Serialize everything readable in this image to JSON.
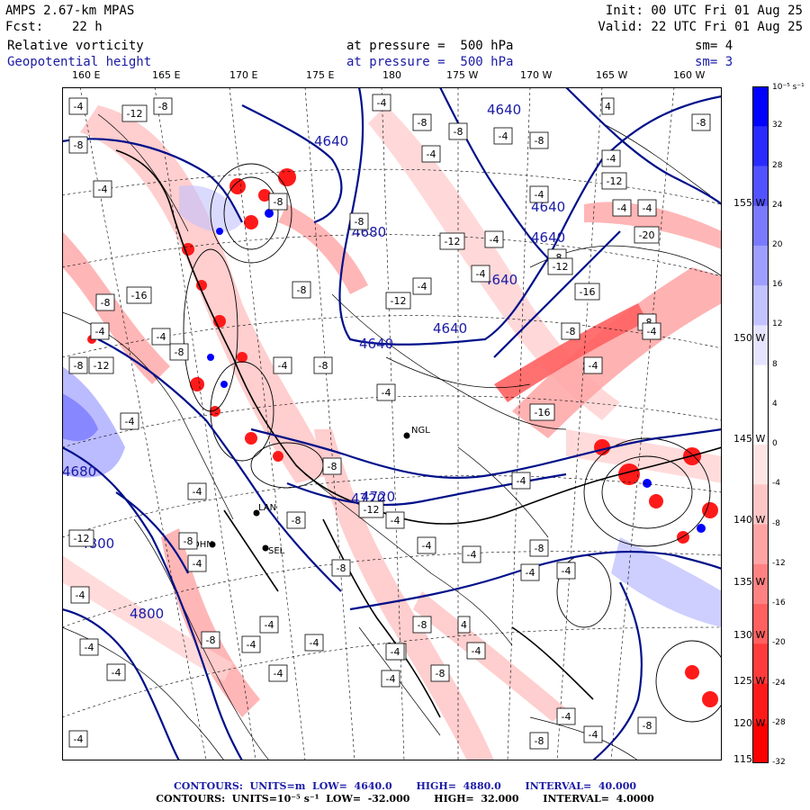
{
  "header": {
    "model": "AMPS 2.67-km MPAS",
    "forecast_label": "Fcst:",
    "forecast_hours": "22 h",
    "init": "Init: 00 UTC Fri 01 Aug 25",
    "valid": "Valid: 22 UTC Fri 01 Aug 25",
    "field1_name": "Relative vorticity",
    "field1_level": "at pressure =  500 hPa",
    "field1_smooth": "sm= 4",
    "field2_name": "Geopotential height",
    "field2_level": "at pressure =  500 hPa",
    "field2_smooth": "sm= 3"
  },
  "longitude_labels": [
    "160 E",
    "165 E",
    "170 E",
    "175 E",
    "180",
    "175 W",
    "170 W",
    "165 W",
    "160 W"
  ],
  "latitude_labels": [
    "155 W",
    "150 W",
    "145 W",
    "140 W",
    "135 W",
    "130 W",
    "125 W",
    "120 W"
  ],
  "colorbar": {
    "unit": "10⁻⁵ s⁻¹",
    "labels": [
      "32",
      "28",
      "24",
      "20",
      "16",
      "12",
      "8",
      "4",
      "0",
      "-4",
      "-8",
      "-12",
      "-16",
      "-20",
      "-24",
      "-28",
      "-32"
    ],
    "bottom_label": "115",
    "colors": [
      "#0000ff",
      "#2a2aff",
      "#5252ff",
      "#7a7aff",
      "#9e9eff",
      "#c2c2ff",
      "#e4e4ff",
      "#ffffff",
      "#ffffff",
      "#ffe4e4",
      "#ffc6c6",
      "#ffa4a4",
      "#ff8282",
      "#ff6060",
      "#ff3c3c",
      "#ff1a1a",
      "#ff0000"
    ]
  },
  "height_contour_labels": [
    "4640",
    "4640",
    "4640",
    "4640",
    "4640",
    "4640",
    "4640",
    "4680",
    "4680",
    "4720",
    "4720",
    "4800",
    "4800"
  ],
  "station_labels": [
    "NGL",
    "LAN",
    "SEL",
    "DHN"
  ],
  "footer": {
    "line1": "CONTOURS:  UNITS=m  LOW=  4640.0       HIGH=  4880.0       INTERVAL=  40.000",
    "line2": "CONTOURS:  UNITS=10⁻⁵ s⁻¹  LOW=  -32.000       HIGH=  32.000       INTERVAL=  4.0000"
  },
  "vorticity_box_labels": [
    "-4",
    "-12",
    "-8",
    "-8",
    "-4",
    "-4",
    "-8",
    "-8",
    "-4",
    "-12",
    "-4",
    "-8",
    "-8",
    "-4",
    "-4",
    "4",
    "-4",
    "-8",
    "-8",
    "-12",
    "-8",
    "-4",
    "-12",
    "-8",
    "-12",
    "-4",
    "-4",
    "-8",
    "-16",
    "-4",
    "-4",
    "-16",
    "-8",
    "-4",
    "-20",
    "-4",
    "-8",
    "-12",
    "-8",
    "-4",
    "-8",
    "-4",
    "-16",
    "-8",
    "-4",
    "-4",
    "-8",
    "-12",
    "-4",
    "-4",
    "-8",
    "-4",
    "-8",
    "-4",
    "-12",
    "-4",
    "-8",
    "-4",
    "-4",
    "-4",
    "-8",
    "-4",
    "-4",
    "-8",
    "-4",
    "-4",
    "-4",
    "-4",
    "-8",
    "4",
    "-4",
    "-8",
    "-4",
    "-4",
    "-4",
    "-4",
    "-4",
    "-8",
    "-4",
    "-4",
    "-8"
  ],
  "colors": {
    "height_contour": "#00108a",
    "boundary": "#000000",
    "label_blue": "#1a1aa6"
  }
}
